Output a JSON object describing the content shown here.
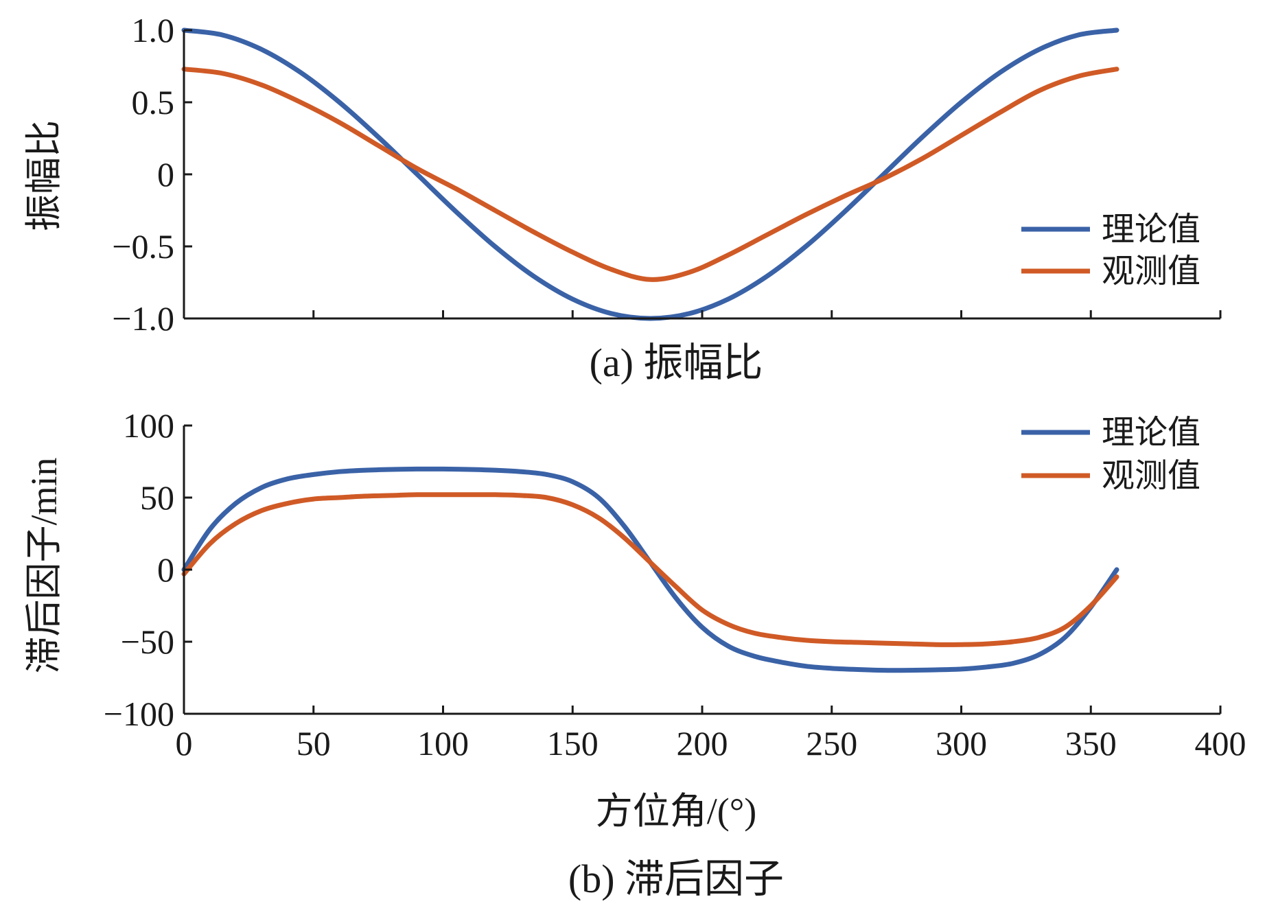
{
  "chart_data": [
    {
      "type": "line",
      "id": "a",
      "caption": "(a) 振幅比",
      "ylabel": "振幅比",
      "xlabel": "",
      "xlim": [
        0,
        400
      ],
      "ylim": [
        -1.0,
        1.0
      ],
      "yticks": [
        -1.0,
        -0.5,
        0,
        0.5,
        1.0
      ],
      "ytick_labels": [
        "−1.0",
        "−0.5",
        "0",
        "0.5",
        "1.0"
      ],
      "xticks": [
        0,
        50,
        100,
        150,
        200,
        250,
        300,
        350,
        400
      ],
      "x": [
        0,
        15,
        30,
        45,
        60,
        75,
        90,
        105,
        120,
        135,
        150,
        165,
        180,
        195,
        210,
        225,
        240,
        255,
        270,
        285,
        300,
        315,
        330,
        345,
        360
      ],
      "series": [
        {
          "name": "理论值",
          "color": "#3a62a7",
          "values": [
            1.0,
            0.966,
            0.866,
            0.707,
            0.5,
            0.259,
            0.0,
            -0.259,
            -0.5,
            -0.707,
            -0.866,
            -0.966,
            -1.0,
            -0.966,
            -0.866,
            -0.707,
            -0.5,
            -0.259,
            0.0,
            0.259,
            0.5,
            0.707,
            0.866,
            0.966,
            1.0
          ]
        },
        {
          "name": "观测值",
          "color": "#d05a26",
          "values": [
            0.73,
            0.7,
            0.62,
            0.5,
            0.36,
            0.2,
            0.04,
            -0.1,
            -0.25,
            -0.4,
            -0.54,
            -0.66,
            -0.73,
            -0.68,
            -0.56,
            -0.42,
            -0.28,
            -0.15,
            -0.03,
            0.11,
            0.27,
            0.43,
            0.58,
            0.68,
            0.73
          ]
        }
      ],
      "legend": "right"
    },
    {
      "type": "line",
      "id": "b",
      "caption": "(b) 滞后因子",
      "ylabel": "滞后因子/min",
      "xlabel": "方位角/(°)",
      "xlim": [
        0,
        400
      ],
      "ylim": [
        -100,
        100
      ],
      "yticks": [
        -100,
        -50,
        0,
        50,
        100
      ],
      "ytick_labels": [
        "−100",
        "−50",
        "0",
        "50",
        "100"
      ],
      "xticks": [
        0,
        50,
        100,
        150,
        200,
        250,
        300,
        350,
        400
      ],
      "xtick_labels": [
        "0",
        "50",
        "100",
        "150",
        "200",
        "250",
        "300",
        "350",
        "400"
      ],
      "x": [
        0,
        10,
        20,
        30,
        40,
        50,
        60,
        70,
        80,
        90,
        100,
        110,
        120,
        130,
        140,
        150,
        160,
        170,
        180,
        190,
        200,
        210,
        220,
        230,
        240,
        250,
        260,
        270,
        280,
        290,
        300,
        310,
        320,
        330,
        340,
        350,
        360
      ],
      "series": [
        {
          "name": "理论值",
          "color": "#3a62a7",
          "values": [
            0,
            28,
            46,
            57,
            63,
            66,
            68,
            69,
            69.5,
            69.8,
            69.8,
            69.5,
            69,
            68,
            66,
            61,
            50,
            30,
            5,
            -20,
            -40,
            -53,
            -60,
            -64,
            -67,
            -68.5,
            -69.3,
            -69.8,
            -69.8,
            -69.5,
            -69,
            -67.5,
            -65,
            -59,
            -47,
            -26,
            0
          ]
        },
        {
          "name": "观测值",
          "color": "#d05a26",
          "values": [
            -3,
            18,
            32,
            41,
            46,
            49,
            50,
            51,
            51.5,
            52,
            52,
            52,
            52,
            51.5,
            50,
            45,
            36,
            22,
            5,
            -12,
            -28,
            -38,
            -44,
            -47,
            -49,
            -50,
            -50.5,
            -51,
            -51.5,
            -52,
            -52,
            -51.5,
            -50,
            -47,
            -40,
            -25,
            -5
          ]
        }
      ],
      "legend": "top-right"
    }
  ]
}
